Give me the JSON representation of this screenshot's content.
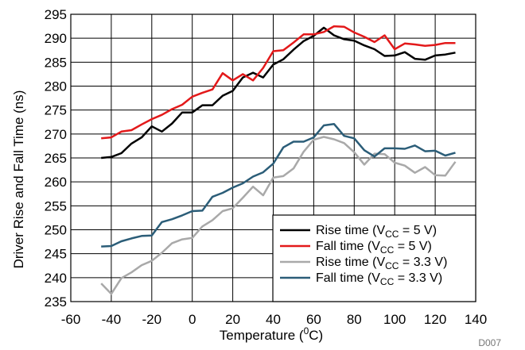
{
  "chart_data": {
    "type": "line",
    "xlabel": {
      "base": "Temperature (",
      "sup": "0",
      "tail": "C)"
    },
    "ylabel": "Driver Rise and Fall Time (ns)",
    "corner_code": "D007",
    "xlim": [
      -60,
      140
    ],
    "ylim": [
      235,
      295
    ],
    "xticks": [
      -60,
      -40,
      -20,
      0,
      20,
      40,
      60,
      80,
      100,
      120,
      140
    ],
    "yticks": [
      235,
      240,
      245,
      250,
      255,
      260,
      265,
      270,
      275,
      280,
      285,
      290,
      295
    ],
    "grid": true,
    "legend_position": "bottom-right",
    "x": [
      -45,
      -40,
      -35,
      -30,
      -25,
      -20,
      -15,
      -10,
      -5,
      0,
      5,
      10,
      15,
      20,
      25,
      30,
      35,
      40,
      45,
      50,
      55,
      60,
      65,
      70,
      75,
      80,
      85,
      90,
      95,
      100,
      105,
      110,
      115,
      120,
      125,
      130
    ],
    "series": [
      {
        "name": {
          "pre": "Rise time (V",
          "sub": "CC",
          "post": " = 5 V)"
        },
        "color": "#000000",
        "values": [
          265,
          265.2,
          266,
          268,
          269.3,
          271.6,
          270.5,
          272.2,
          274.5,
          274.5,
          276,
          276,
          278,
          279,
          281.8,
          282.8,
          281.8,
          284.5,
          285.6,
          287.6,
          289.4,
          290.5,
          292.2,
          290.6,
          289.8,
          289.5,
          288.5,
          287.7,
          286.3,
          286.4,
          287.1,
          285.7,
          285.5,
          286.4,
          286.6,
          287
        ]
      },
      {
        "name": {
          "pre": "Fall time (V",
          "sub": "CC",
          "post": " = 5 V)"
        },
        "color": "#e3191a",
        "values": [
          269.1,
          269.3,
          270.5,
          270.8,
          272,
          273.1,
          274,
          275.2,
          276.1,
          277.8,
          278.6,
          279.3,
          282.7,
          281.2,
          282.5,
          281.2,
          283.8,
          287.3,
          287.5,
          289.1,
          290.8,
          290.8,
          291.3,
          292.5,
          292.4,
          291.2,
          290.3,
          289.2,
          290.6,
          287.7,
          288.9,
          288.7,
          288.4,
          288.6,
          289,
          289
        ]
      },
      {
        "name": {
          "pre": "Rise time (V",
          "sub": "CC",
          "post": " = 3.3 V)"
        },
        "color": "#a9a9a9",
        "values": [
          238.8,
          236.6,
          239.9,
          241.1,
          242.6,
          243.5,
          245.2,
          247.2,
          248,
          248.3,
          250.7,
          252,
          253.9,
          254.5,
          256.7,
          259,
          257.2,
          260.9,
          261.2,
          262.8,
          266.3,
          268.8,
          269.4,
          268.9,
          268.1,
          266.2,
          263.6,
          265.9,
          265.8,
          264,
          263.4,
          261.9,
          263.1,
          261.4,
          261.3,
          264.2
        ]
      },
      {
        "name": {
          "pre": "Fall time (V",
          "sub": "CC",
          "post": " = 3.3 V)"
        },
        "color": "#2b5d78",
        "values": [
          246.5,
          246.6,
          247.6,
          248.2,
          248.7,
          248.8,
          251.6,
          252.2,
          253,
          253.9,
          254,
          256.9,
          257.7,
          258.8,
          259.7,
          261.1,
          262,
          263.8,
          267.2,
          268.4,
          268.4,
          269.3,
          271.8,
          272.1,
          269.6,
          269.1,
          266.6,
          265.3,
          267,
          267,
          266.9,
          267.6,
          266.4,
          266.5,
          265.5,
          266.1
        ]
      }
    ]
  }
}
